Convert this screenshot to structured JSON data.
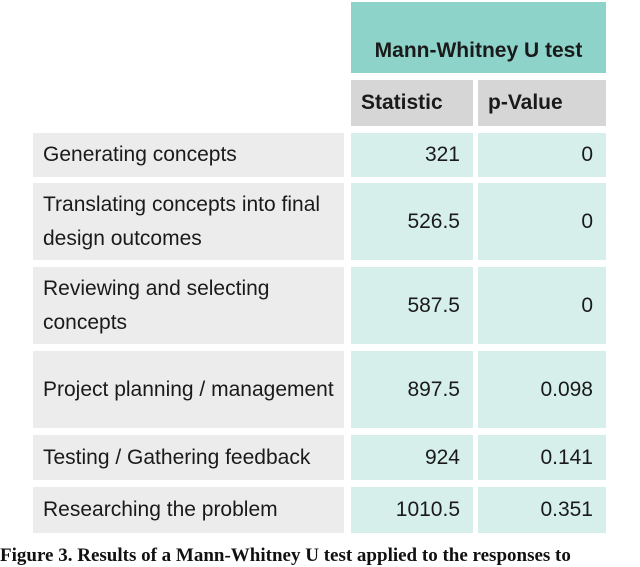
{
  "table": {
    "group_header": "Mann-Whitney U test",
    "columns": [
      "Statistic",
      "p-Value"
    ],
    "rows": [
      {
        "label": "Generating concepts",
        "statistic": "321",
        "p_value": "0"
      },
      {
        "label": "Translating concepts into final design outcomes",
        "statistic": "526.5",
        "p_value": "0"
      },
      {
        "label": "Reviewing and selecting concepts",
        "statistic": "587.5",
        "p_value": "0"
      },
      {
        "label": "Project planning / management",
        "statistic": "897.5",
        "p_value": "0.098"
      },
      {
        "label": "Testing / Gathering feedback",
        "statistic": "924",
        "p_value": "0.141"
      },
      {
        "label": "Researching the problem",
        "statistic": "1010.5",
        "p_value": "0.351"
      }
    ]
  },
  "caption": "Figure 3. Results of a Mann-Whitney U test applied to the responses to"
}
